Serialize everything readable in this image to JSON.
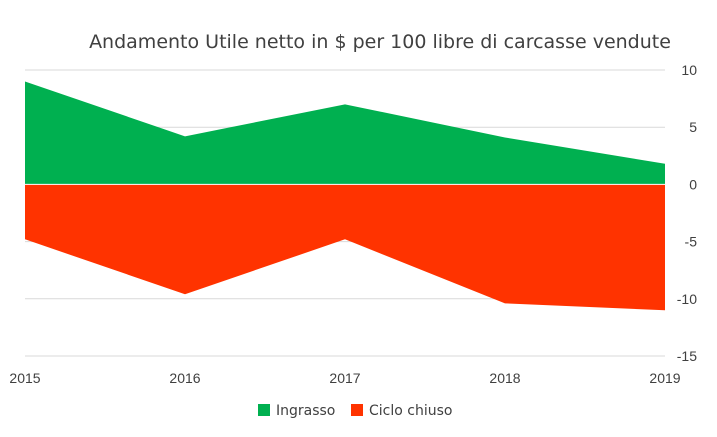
{
  "chart_data": {
    "type": "area",
    "title": "Andamento Utile netto in $ per 100 libre di carcasse vendute",
    "xlabel": "",
    "ylabel": "",
    "categories": [
      "2015",
      "2016",
      "2017",
      "2018",
      "2019"
    ],
    "series": [
      {
        "name": "Ingrasso",
        "color": "#00b050",
        "values": [
          9,
          4.2,
          7,
          4.1,
          1.8
        ]
      },
      {
        "name": "Ciclo chiuso",
        "color": "#ff3300",
        "values": [
          -4.8,
          -9.6,
          -4.8,
          -10.4,
          -11
        ]
      }
    ],
    "y_ticks": [
      "10",
      "5",
      "0",
      "-5",
      "-10",
      "-15"
    ],
    "ylim": [
      -15,
      10
    ],
    "y_axis_side": "right",
    "grid": true,
    "legend_position": "bottom"
  }
}
